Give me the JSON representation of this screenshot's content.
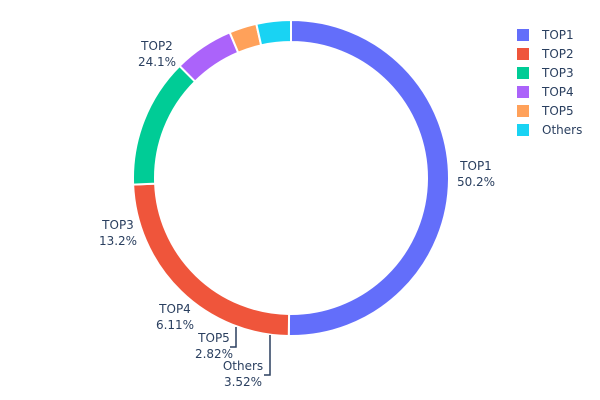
{
  "chart_data": {
    "type": "pie",
    "hole": true,
    "title": "",
    "legend_position": "top-right",
    "slices": [
      {
        "label": "TOP1",
        "value": 50.2,
        "display": "50.2%",
        "color": "#636efa"
      },
      {
        "label": "TOP2",
        "value": 24.1,
        "display": "24.1%",
        "color": "#ef553b"
      },
      {
        "label": "TOP3",
        "value": 13.2,
        "display": "13.2%",
        "color": "#00cc96"
      },
      {
        "label": "TOP4",
        "value": 6.11,
        "display": "6.11%",
        "color": "#ab63fa"
      },
      {
        "label": "TOP5",
        "value": 2.82,
        "display": "2.82%",
        "color": "#ffa15a"
      },
      {
        "label": "Others",
        "value": 3.52,
        "display": "3.52%",
        "color": "#19d3f3"
      }
    ]
  }
}
